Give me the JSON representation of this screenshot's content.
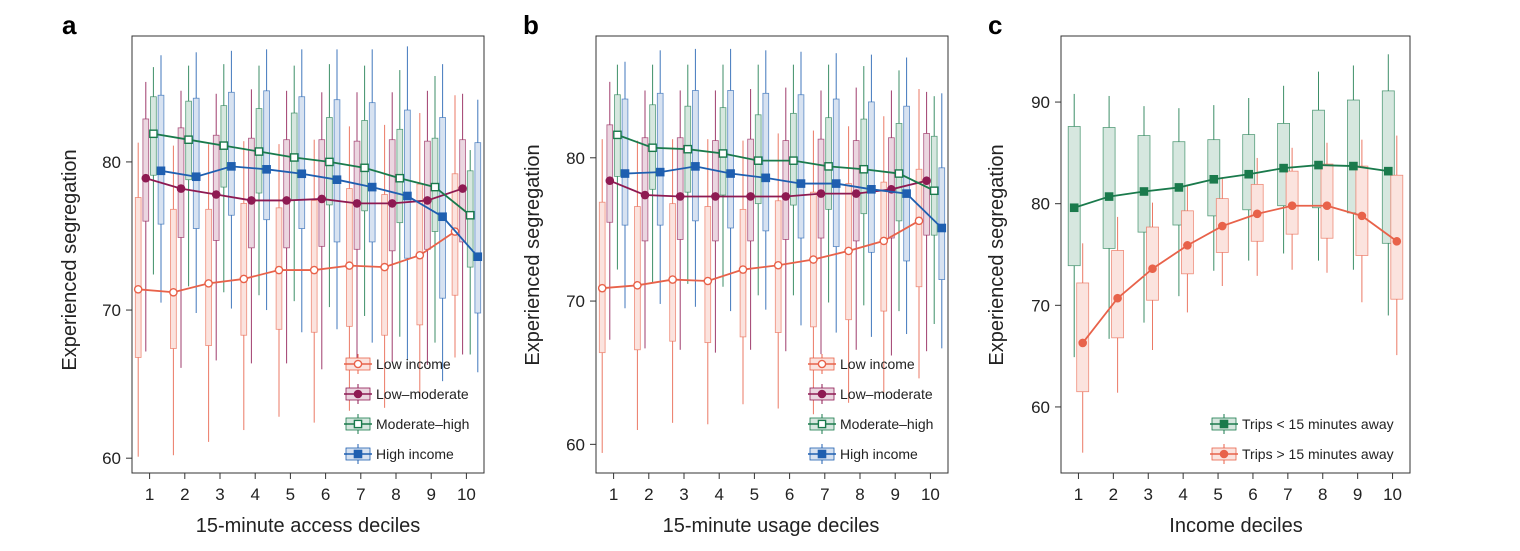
{
  "chart_data": [
    {
      "panel": "a",
      "type": "line",
      "xlabel": "15-minute access deciles",
      "ylabel": "Experienced segregation",
      "x": [
        1,
        2,
        3,
        4,
        5,
        6,
        7,
        8,
        9,
        10
      ],
      "xlim": [
        0.5,
        10.5
      ],
      "ylim": [
        59,
        88.5
      ],
      "yticks": [
        60,
        70,
        80
      ],
      "legend_position": "lower-right",
      "series": [
        {
          "name": "Low income",
          "color": "#e8624a",
          "marker": "open-circle",
          "values": [
            71.4,
            71.2,
            71.8,
            72.1,
            72.7,
            72.7,
            73.0,
            72.9,
            73.7,
            75.3
          ],
          "box_q1": [
            66.8,
            67.4,
            67.6,
            68.3,
            68.7,
            68.5,
            68.9,
            68.3,
            69.0,
            71.0
          ],
          "box_q3": [
            77.6,
            76.8,
            76.8,
            77.2,
            76.9,
            77.4,
            78.2,
            77.8,
            78.5,
            79.2
          ],
          "whisker_low": [
            60.1,
            60.2,
            61.1,
            61.9,
            62.8,
            62.4,
            63.2,
            63.4,
            64.2,
            66.8
          ],
          "whisker_high": [
            81.3,
            81.1,
            81.2,
            81.4,
            81.2,
            81.5,
            82.4,
            82.5,
            83.3,
            84.5
          ]
        },
        {
          "name": "Low–moderate",
          "color": "#8e1a52",
          "marker": "filled-circle",
          "values": [
            78.9,
            78.2,
            77.8,
            77.4,
            77.4,
            77.5,
            77.2,
            77.2,
            77.4,
            78.2
          ],
          "box_q1": [
            76.0,
            74.9,
            74.7,
            74.2,
            74.2,
            74.3,
            74.1,
            74.0,
            74.1,
            74.6
          ],
          "box_q3": [
            82.9,
            82.3,
            81.8,
            81.6,
            81.5,
            81.5,
            81.4,
            81.5,
            81.4,
            81.5
          ],
          "whisker_low": [
            67.2,
            66.1,
            66.6,
            66.4,
            66.4,
            66.0,
            66.3,
            66.5,
            66.3,
            67.0
          ],
          "whisker_high": [
            85.4,
            84.8,
            84.6,
            84.9,
            84.8,
            84.7,
            84.7,
            84.7,
            84.8,
            84.6
          ]
        },
        {
          "name": "Moderate–high",
          "color": "#1a7a4c",
          "marker": "open-square",
          "values": [
            81.9,
            81.5,
            81.1,
            80.7,
            80.3,
            80.0,
            79.6,
            78.9,
            78.3,
            76.4
          ],
          "box_q1": [
            79.1,
            78.8,
            78.3,
            77.9,
            77.4,
            77.1,
            76.7,
            75.9,
            75.3,
            72.9
          ],
          "box_q3": [
            84.4,
            84.1,
            83.8,
            83.6,
            83.3,
            83.0,
            82.8,
            82.2,
            81.6,
            79.4
          ],
          "whisker_low": [
            72.4,
            71.6,
            71.2,
            71.0,
            70.6,
            70.2,
            69.6,
            68.2,
            67.8,
            67.0
          ],
          "whisker_high": [
            86.4,
            86.5,
            86.6,
            86.5,
            86.5,
            86.6,
            86.5,
            86.2,
            85.8,
            80.8
          ]
        },
        {
          "name": "High income",
          "color": "#1f5fb0",
          "marker": "filled-square",
          "values": [
            79.4,
            79.0,
            79.7,
            79.5,
            79.2,
            78.8,
            78.3,
            77.7,
            76.3,
            73.6
          ],
          "box_q1": [
            75.8,
            75.5,
            76.4,
            76.1,
            75.5,
            74.6,
            74.6,
            73.5,
            70.8,
            69.8
          ],
          "box_q3": [
            84.5,
            84.3,
            84.7,
            84.8,
            84.4,
            84.2,
            84.0,
            83.5,
            83.0,
            81.3
          ],
          "whisker_low": [
            70.5,
            69.8,
            70.1,
            70.0,
            68.5,
            68.7,
            67.8,
            66.6,
            65.2,
            65.8
          ],
          "whisker_high": [
            87.2,
            87.4,
            87.5,
            87.6,
            87.6,
            87.6,
            87.6,
            87.8,
            86.6,
            84.2
          ]
        }
      ]
    },
    {
      "panel": "b",
      "type": "line",
      "xlabel": "15-minute usage deciles",
      "ylabel": "Experienced segregation",
      "x": [
        1,
        2,
        3,
        4,
        5,
        6,
        7,
        8,
        9,
        10
      ],
      "xlim": [
        0.5,
        10.5
      ],
      "ylim": [
        58,
        88.5
      ],
      "yticks": [
        60,
        70,
        80
      ],
      "legend_position": "lower-right",
      "series": [
        {
          "name": "Low income",
          "color": "#e8624a",
          "marker": "open-circle",
          "values": [
            70.9,
            71.1,
            71.5,
            71.4,
            72.2,
            72.5,
            72.9,
            73.5,
            74.2,
            75.6
          ],
          "box_q1": [
            66.4,
            66.6,
            67.2,
            67.1,
            67.5,
            67.8,
            68.2,
            68.7,
            69.3,
            71.0
          ],
          "box_q3": [
            76.9,
            76.6,
            76.8,
            76.6,
            76.4,
            77.0,
            77.6,
            78.2,
            78.3,
            79.2
          ],
          "whisker_low": [
            59.4,
            61.0,
            61.5,
            61.4,
            62.8,
            62.5,
            62.1,
            62.9,
            63.6,
            64.6
          ],
          "whisker_high": [
            81.3,
            81.2,
            81.3,
            81.3,
            81.2,
            81.7,
            81.9,
            82.2,
            82.9,
            84.8
          ]
        },
        {
          "name": "Low–moderate",
          "color": "#8e1a52",
          "marker": "filled-circle",
          "values": [
            78.4,
            77.4,
            77.3,
            77.3,
            77.3,
            77.3,
            77.5,
            77.5,
            77.8,
            78.4
          ],
          "box_q1": [
            75.5,
            74.2,
            74.3,
            74.2,
            74.2,
            74.3,
            74.4,
            74.2,
            74.4,
            74.6
          ],
          "box_q3": [
            82.3,
            81.4,
            81.4,
            81.2,
            81.3,
            81.2,
            81.3,
            81.2,
            81.4,
            81.7
          ],
          "whisker_low": [
            67.3,
            66.7,
            66.6,
            66.4,
            66.6,
            66.5,
            66.3,
            66.6,
            66.2,
            66.5
          ],
          "whisker_high": [
            85.3,
            84.7,
            84.7,
            84.7,
            84.8,
            84.9,
            84.7,
            84.9,
            84.7,
            84.6
          ]
        },
        {
          "name": "Moderate–high",
          "color": "#1a7a4c",
          "marker": "open-square",
          "values": [
            81.6,
            80.7,
            80.6,
            80.3,
            79.8,
            79.8,
            79.4,
            79.2,
            78.9,
            77.7
          ],
          "box_q1": [
            78.7,
            77.8,
            77.6,
            77.4,
            76.8,
            76.7,
            76.4,
            76.1,
            75.6,
            74.6
          ],
          "box_q3": [
            84.4,
            83.7,
            83.6,
            83.5,
            83.0,
            83.1,
            82.8,
            82.7,
            82.4,
            81.5
          ],
          "whisker_low": [
            72.2,
            71.3,
            71.2,
            71.0,
            70.4,
            70.4,
            69.9,
            69.7,
            69.3,
            68.4
          ],
          "whisker_high": [
            86.5,
            86.5,
            86.5,
            86.5,
            86.5,
            86.5,
            86.5,
            86.4,
            86.1,
            84.3
          ]
        },
        {
          "name": "High income",
          "color": "#1f5fb0",
          "marker": "filled-square",
          "values": [
            78.9,
            79.0,
            79.4,
            78.9,
            78.6,
            78.2,
            78.2,
            77.8,
            77.5,
            75.1
          ],
          "box_q1": [
            75.3,
            75.3,
            75.6,
            75.1,
            74.9,
            74.4,
            73.8,
            73.4,
            72.8,
            71.5
          ],
          "box_q3": [
            84.1,
            84.5,
            84.7,
            84.7,
            84.5,
            84.4,
            84.1,
            83.9,
            83.6,
            79.3
          ],
          "whisker_low": [
            69.5,
            69.8,
            69.6,
            69.3,
            69.4,
            68.3,
            67.8,
            67.5,
            67.7,
            66.7
          ],
          "whisker_high": [
            86.7,
            87.5,
            87.6,
            87.6,
            87.5,
            87.4,
            87.3,
            87.2,
            87.0,
            84.5
          ]
        }
      ]
    },
    {
      "panel": "c",
      "type": "line",
      "xlabel": "Income deciles",
      "ylabel": "Experienced segregation",
      "x": [
        1,
        2,
        3,
        4,
        5,
        6,
        7,
        8,
        9,
        10
      ],
      "xlim": [
        0.5,
        10.5
      ],
      "ylim": [
        53.5,
        96.5
      ],
      "yticks": [
        60,
        70,
        80,
        90
      ],
      "legend_position": "lower-right",
      "series": [
        {
          "name": "Trips < 15 minutes away",
          "color": "#1a7a4c",
          "marker": "filled-square",
          "values": [
            79.6,
            80.7,
            81.2,
            81.6,
            82.4,
            82.9,
            83.5,
            83.8,
            83.7,
            83.2
          ],
          "box_q1": [
            73.9,
            75.6,
            77.2,
            77.9,
            78.8,
            79.4,
            79.8,
            79.6,
            79.1,
            76.1
          ],
          "box_q3": [
            87.6,
            87.5,
            86.7,
            86.1,
            86.3,
            86.8,
            87.9,
            89.2,
            90.2,
            91.1
          ],
          "whisker_low": [
            64.9,
            66.7,
            68.3,
            70.9,
            73.4,
            74.4,
            75.1,
            74.4,
            73.5,
            69.0
          ],
          "whisker_high": [
            90.8,
            90.6,
            89.6,
            89.4,
            89.7,
            90.4,
            91.6,
            93.0,
            93.6,
            94.7
          ]
        },
        {
          "name": "Trips > 15 minutes away",
          "color": "#e8624a",
          "marker": "filled-circle",
          "values": [
            66.3,
            70.7,
            73.6,
            75.9,
            77.8,
            79.0,
            79.8,
            79.8,
            78.8,
            76.3
          ],
          "box_q1": [
            61.5,
            66.8,
            70.5,
            73.1,
            75.2,
            76.3,
            77.0,
            76.6,
            74.9,
            70.6
          ],
          "box_q3": [
            72.2,
            75.4,
            77.7,
            79.3,
            80.5,
            81.9,
            83.2,
            83.9,
            83.7,
            82.8
          ],
          "whisker_low": [
            55.5,
            61.4,
            65.6,
            69.3,
            71.9,
            72.9,
            73.5,
            73.2,
            70.3,
            65.1
          ],
          "whisker_high": [
            76.1,
            78.7,
            80.1,
            81.7,
            82.6,
            84.5,
            85.5,
            86.0,
            86.3,
            86.7
          ]
        }
      ]
    }
  ],
  "panel_letters": [
    "a",
    "b",
    "c"
  ]
}
